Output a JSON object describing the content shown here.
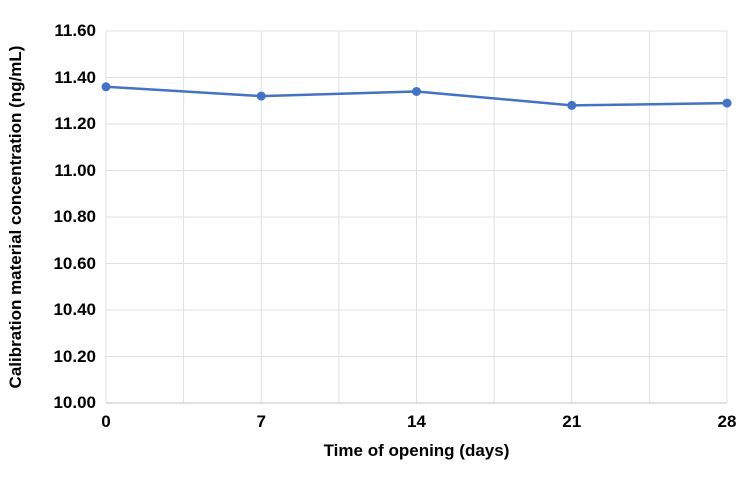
{
  "chart_data": {
    "type": "line",
    "title": "",
    "xlabel": "Time of opening (days)",
    "ylabel": "Calibration material concentration (ng/mL)",
    "x": [
      0,
      7,
      14,
      21,
      28
    ],
    "series": [
      {
        "name": "Calibration material concentration (ng/mL)",
        "values": [
          11.36,
          11.32,
          11.34,
          11.28,
          11.29
        ]
      }
    ],
    "xlim": [
      0,
      28
    ],
    "ylim": [
      10.0,
      11.6
    ],
    "x_tick_labels": [
      "0",
      "7",
      "14",
      "21",
      "28"
    ],
    "x_tick_values": [
      0,
      7,
      14,
      21,
      28
    ],
    "y_tick_labels": [
      "10.00",
      "10.20",
      "10.40",
      "10.60",
      "10.80",
      "11.00",
      "11.20",
      "11.40",
      "11.60"
    ],
    "x_gridline_step_days": 3.5,
    "grid": true,
    "legend_position": "none",
    "colors": {
      "line": "#4472C4",
      "marker": "#4472C4",
      "gridline": "#E0E0E0",
      "axis_line": "#CFCFCF",
      "text": "#000000"
    }
  }
}
